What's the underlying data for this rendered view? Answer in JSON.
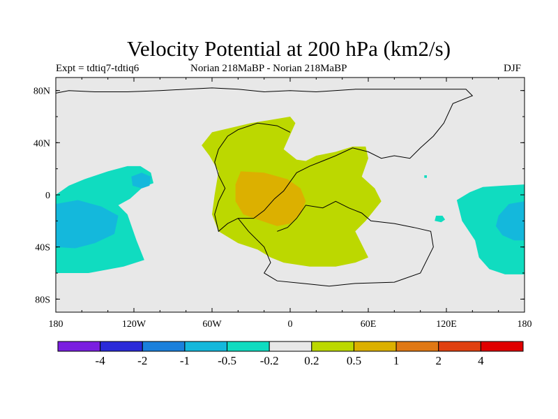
{
  "chart_data": {
    "type": "heatmap",
    "title": "Velocity Potential at 200 hPa (km2/s)",
    "subtitle_left": "Expt = tdtiq7-tdtiq6",
    "subtitle_center": "Norian   218MaBP - Norian   218MaBP",
    "subtitle_right": "DJF",
    "x_ticks": [
      "180",
      "120W",
      "60W",
      "0",
      "60E",
      "120E",
      "180"
    ],
    "y_ticks": [
      "80N",
      "40N",
      "0",
      "40S",
      "80S"
    ],
    "xlim": [
      -180,
      180
    ],
    "ylim": [
      -90,
      90
    ],
    "colorbar_labels": [
      "-4",
      "-2",
      "-1",
      "-0.5",
      "-0.2",
      "0.2",
      "0.5",
      "1",
      "2",
      "4"
    ],
    "colorbar_colors": [
      "#7a1ee0",
      "#2a2ad8",
      "#1a80dc",
      "#14b8dc",
      "#10dcc0",
      "#e8e8e8",
      "#bcd800",
      "#dcb000",
      "#e07814",
      "#e04010",
      "#e00000"
    ],
    "background_color": "#e8e8e8",
    "regions": [
      {
        "name": "positive-0.2-0.5-over-pangaea",
        "level": "0.2 to 0.5",
        "color": "#bcd800",
        "outline": [
          [
            -60,
            48
          ],
          [
            -30,
            55
          ],
          [
            0,
            60
          ],
          [
            4,
            55
          ],
          [
            -5,
            35
          ],
          [
            5,
            27
          ],
          [
            12,
            26
          ],
          [
            20,
            30
          ],
          [
            35,
            33
          ],
          [
            48,
            37
          ],
          [
            58,
            37
          ],
          [
            60,
            28
          ],
          [
            55,
            14
          ],
          [
            65,
            5
          ],
          [
            70,
            -5
          ],
          [
            58,
            -20
          ],
          [
            50,
            -28
          ],
          [
            60,
            -48
          ],
          [
            50,
            -52
          ],
          [
            35,
            -55
          ],
          [
            15,
            -55
          ],
          [
            -5,
            -52
          ],
          [
            -15,
            -48
          ],
          [
            -25,
            -42
          ],
          [
            -40,
            -37
          ],
          [
            -55,
            -28
          ],
          [
            -60,
            -15
          ],
          [
            -58,
            0
          ],
          [
            -55,
            18
          ],
          [
            -62,
            30
          ],
          [
            -68,
            38
          ]
        ]
      },
      {
        "name": "positive-0.5-1-core",
        "level": "0.5 to 1",
        "color": "#dcb000",
        "outline": [
          [
            -38,
            18
          ],
          [
            -20,
            17
          ],
          [
            -2,
            12
          ],
          [
            8,
            5
          ],
          [
            12,
            -5
          ],
          [
            8,
            -15
          ],
          [
            0,
            -22
          ],
          [
            -10,
            -24
          ],
          [
            -22,
            -20
          ],
          [
            -36,
            -15
          ],
          [
            -42,
            -5
          ],
          [
            -42,
            8
          ]
        ]
      },
      {
        "name": "negative-west-pacific-band",
        "level": "-0.5 to -0.2",
        "color": "#10dcc0",
        "outline": [
          [
            -180,
            0
          ],
          [
            -170,
            7
          ],
          [
            -158,
            12
          ],
          [
            -140,
            18
          ],
          [
            -125,
            22
          ],
          [
            -115,
            22
          ],
          [
            -107,
            17
          ],
          [
            -105,
            9
          ],
          [
            -113,
            6
          ],
          [
            -123,
            -3
          ],
          [
            -132,
            -8
          ],
          [
            -125,
            -15
          ],
          [
            -118,
            -35
          ],
          [
            -112,
            -50
          ],
          [
            -128,
            -55
          ],
          [
            -155,
            -60
          ],
          [
            -180,
            -60
          ]
        ]
      },
      {
        "name": "negative-west-pacific-core",
        "level": "-1 to -0.5",
        "color": "#14b8dc",
        "outline": [
          [
            -180,
            -7
          ],
          [
            -163,
            -4
          ],
          [
            -145,
            -9
          ],
          [
            -132,
            -16
          ],
          [
            -135,
            -30
          ],
          [
            -150,
            -37
          ],
          [
            -165,
            -41
          ],
          [
            -180,
            -40
          ]
        ]
      },
      {
        "name": "negative-small-cell-120w",
        "level": "-1 to -0.5",
        "color": "#14b8dc",
        "outline": [
          [
            -122,
            14
          ],
          [
            -114,
            17
          ],
          [
            -107,
            14
          ],
          [
            -108,
            7
          ],
          [
            -114,
            5
          ],
          [
            -121,
            7
          ]
        ]
      },
      {
        "name": "negative-east-edge-band",
        "level": "-0.5 to -0.2",
        "color": "#10dcc0",
        "outline": [
          [
            180,
            8
          ],
          [
            163,
            7
          ],
          [
            148,
            6
          ],
          [
            138,
            2
          ],
          [
            128,
            -4
          ],
          [
            132,
            -20
          ],
          [
            142,
            -35
          ],
          [
            145,
            -48
          ],
          [
            153,
            -57
          ],
          [
            165,
            -61
          ],
          [
            180,
            -61
          ]
        ]
      },
      {
        "name": "negative-east-edge-core",
        "level": "-1 to -0.5",
        "color": "#14b8dc",
        "outline": [
          [
            180,
            -5
          ],
          [
            168,
            -7
          ],
          [
            160,
            -16
          ],
          [
            158,
            -24
          ],
          [
            163,
            -31
          ],
          [
            172,
            -35
          ],
          [
            180,
            -35
          ]
        ]
      },
      {
        "name": "negative-small-patch-110e",
        "level": "-0.5 to -0.2",
        "color": "#10dcc0",
        "outline": [
          [
            112,
            -16
          ],
          [
            117,
            -16
          ],
          [
            119,
            -19
          ],
          [
            116,
            -21
          ],
          [
            111,
            -20
          ]
        ]
      },
      {
        "name": "negative-tiny-patch-104e",
        "level": "-0.5 to -0.2",
        "color": "#10dcc0",
        "outline": [
          [
            103,
            15
          ],
          [
            105,
            15
          ],
          [
            105,
            13
          ],
          [
            103,
            13
          ]
        ]
      }
    ],
    "coastlines": [
      {
        "name": "pangaea-outline",
        "points": [
          [
            -180,
            78
          ],
          [
            -170,
            80
          ],
          [
            -150,
            79
          ],
          [
            -125,
            79
          ],
          [
            -100,
            80
          ],
          [
            -80,
            81
          ],
          [
            -60,
            82
          ],
          [
            -40,
            81
          ],
          [
            -20,
            79
          ],
          [
            0,
            80
          ],
          [
            20,
            79
          ],
          [
            50,
            81
          ],
          [
            80,
            81
          ],
          [
            110,
            81
          ],
          [
            135,
            81
          ],
          [
            140,
            76
          ],
          [
            125,
            70
          ],
          [
            118,
            55
          ],
          [
            110,
            45
          ],
          [
            100,
            36
          ],
          [
            92,
            28
          ],
          [
            80,
            30
          ],
          [
            70,
            28
          ],
          [
            60,
            33
          ],
          [
            48,
            36
          ],
          [
            35,
            30
          ],
          [
            25,
            26
          ],
          [
            15,
            22
          ],
          [
            5,
            17
          ],
          [
            0,
            10
          ],
          [
            -5,
            3
          ],
          [
            -12,
            -3
          ],
          [
            -20,
            -12
          ],
          [
            -28,
            -18
          ],
          [
            -40,
            -18
          ],
          [
            -48,
            -22
          ],
          [
            -55,
            -28
          ],
          [
            -58,
            -15
          ],
          [
            -55,
            -5
          ],
          [
            -50,
            5
          ],
          [
            -55,
            15
          ],
          [
            -58,
            25
          ],
          [
            -55,
            35
          ],
          [
            -48,
            45
          ],
          [
            -40,
            50
          ],
          [
            -25,
            55
          ],
          [
            -10,
            53
          ],
          [
            0,
            48
          ]
        ]
      },
      {
        "name": "southern-pangaea-outline",
        "points": [
          [
            -40,
            -18
          ],
          [
            -32,
            -28
          ],
          [
            -20,
            -40
          ],
          [
            -15,
            -52
          ],
          [
            -20,
            -60
          ],
          [
            -10,
            -66
          ],
          [
            10,
            -68
          ],
          [
            30,
            -70
          ],
          [
            50,
            -68
          ],
          [
            80,
            -67
          ],
          [
            100,
            -60
          ],
          [
            110,
            -40
          ],
          [
            108,
            -28
          ],
          [
            95,
            -25
          ],
          [
            80,
            -22
          ],
          [
            62,
            -20
          ],
          [
            55,
            -14
          ],
          [
            45,
            -10
          ],
          [
            35,
            -5
          ],
          [
            25,
            -10
          ],
          [
            12,
            -8
          ],
          [
            5,
            -18
          ],
          [
            -2,
            -25
          ],
          [
            -10,
            -28
          ]
        ]
      }
    ]
  }
}
